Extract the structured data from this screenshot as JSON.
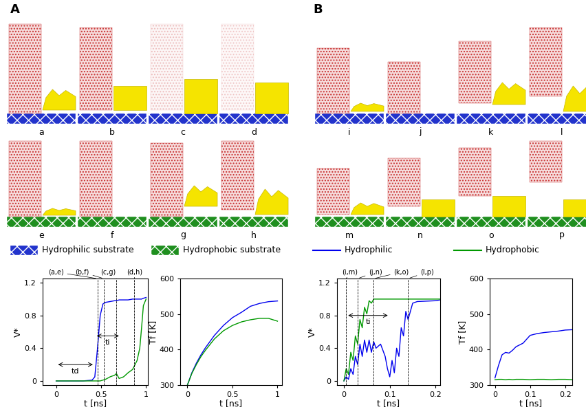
{
  "panels": [
    "A",
    "B"
  ],
  "snapshots": {
    "A": [
      "a",
      "b",
      "c",
      "d",
      "e",
      "f",
      "g",
      "h"
    ],
    "B": [
      "i",
      "j",
      "k",
      "l",
      "m",
      "n",
      "o",
      "p"
    ]
  },
  "legend_A": [
    {
      "name": "Hydrophilic substrate",
      "color": "#2233cc"
    },
    {
      "name": "Hydrophobic substrate",
      "color": "#1f8f1f"
    }
  ],
  "legend_B": [
    {
      "name": "Hydrophilic",
      "color": "#0000ee"
    },
    {
      "name": "Hydrophobic",
      "color": "#009900"
    }
  ],
  "chart_data": [
    {
      "type": "line",
      "x_label": "t [ns]",
      "y_label": "V*",
      "xlim": [
        -0.15,
        1.02
      ],
      "ylim": [
        -0.05,
        1.25
      ],
      "xticks": [
        0,
        0.5,
        1
      ],
      "yticks": [
        0,
        0.4,
        0.8,
        1.2
      ],
      "x": [
        0,
        0.1,
        0.2,
        0.3,
        0.4,
        0.43,
        0.46,
        0.49,
        0.52,
        0.55,
        0.6,
        0.65,
        0.67,
        0.7,
        0.75,
        0.8,
        0.85,
        0.9,
        0.93,
        0.95,
        0.97,
        1.0
      ],
      "series": [
        {
          "name": "Hydrophilic",
          "color": "#0000ee",
          "values": [
            0,
            0,
            0,
            0,
            0.01,
            0.05,
            0.4,
            0.8,
            0.94,
            0.96,
            0.97,
            0.98,
            0.98,
            0.99,
            0.99,
            0.99,
            1.0,
            1.0,
            1.0,
            1.0,
            1.01,
            1.02
          ]
        },
        {
          "name": "Hydrophobic",
          "color": "#009900",
          "values": [
            0,
            0,
            0,
            0,
            0,
            0,
            0,
            0,
            0.01,
            0.02,
            0.05,
            0.07,
            0.09,
            0.03,
            0.05,
            0.1,
            0.14,
            0.25,
            0.4,
            0.65,
            0.92,
            1.0
          ]
        }
      ],
      "annotations": [
        {
          "x": 0.46,
          "label": "(a,e)"
        },
        {
          "x": 0.53,
          "label": "(b,f)"
        },
        {
          "x": 0.67,
          "label": "(c,g)"
        },
        {
          "x": 0.87,
          "label": "(d,h)"
        }
      ],
      "intervals": [
        {
          "label": "td",
          "from": 0,
          "to": 0.43,
          "y": 0.2
        },
        {
          "label": "ti",
          "from": 0.43,
          "to": 0.72,
          "y": 0.55
        }
      ]
    },
    {
      "type": "line",
      "x_label": "t [ns]",
      "y_label": "Tf [K]",
      "xlim": [
        -0.08,
        1.05
      ],
      "ylim": [
        300,
        600
      ],
      "xticks": [
        0,
        0.5,
        1
      ],
      "yticks": [
        300,
        400,
        500,
        600
      ],
      "x": [
        0,
        0.05,
        0.1,
        0.15,
        0.2,
        0.3,
        0.4,
        0.5,
        0.6,
        0.7,
        0.8,
        0.9,
        1.0
      ],
      "series": [
        {
          "name": "Hydrophilic",
          "color": "#0000ee",
          "values": [
            300,
            335,
            362,
            385,
            405,
            440,
            468,
            490,
            505,
            522,
            530,
            535,
            537
          ]
        },
        {
          "name": "Hydrophobic",
          "color": "#009900",
          "values": [
            300,
            333,
            358,
            380,
            398,
            430,
            453,
            468,
            478,
            484,
            488,
            488,
            480
          ]
        }
      ],
      "annotations": [],
      "intervals": []
    },
    {
      "type": "line",
      "x_label": "t [ns]",
      "y_label": "V*",
      "xlim": [
        -0.015,
        0.21
      ],
      "ylim": [
        -0.05,
        1.25
      ],
      "xticks": [
        0,
        0.1,
        0.2
      ],
      "yticks": [
        0,
        0.4,
        0.8,
        1.2
      ],
      "x": [
        0,
        0.005,
        0.01,
        0.015,
        0.02,
        0.025,
        0.03,
        0.035,
        0.04,
        0.045,
        0.05,
        0.055,
        0.06,
        0.065,
        0.07,
        0.08,
        0.09,
        0.095,
        0.1,
        0.105,
        0.11,
        0.115,
        0.12,
        0.125,
        0.13,
        0.135,
        0.14,
        0.15,
        0.16,
        0.2,
        0.21
      ],
      "series": [
        {
          "name": "Hydrophilic",
          "color": "#0000ee",
          "values": [
            0,
            0.05,
            0.02,
            0.15,
            0.08,
            0.3,
            0.2,
            0.45,
            0.3,
            0.5,
            0.35,
            0.5,
            0.35,
            0.48,
            0.4,
            0.45,
            0.3,
            0.15,
            0.05,
            0.25,
            0.1,
            0.4,
            0.3,
            0.65,
            0.55,
            0.85,
            0.75,
            0.95,
            0.97,
            0.98,
            0.99
          ]
        },
        {
          "name": "Hydrophobic",
          "color": "#009900",
          "values": [
            0,
            0.15,
            0.08,
            0.35,
            0.25,
            0.55,
            0.45,
            0.75,
            0.65,
            0.9,
            0.82,
            0.98,
            0.95,
            1.0,
            1.0,
            1.0,
            1.0,
            1.0,
            1.0,
            1.0,
            1.0,
            1.0,
            1.0,
            1.0,
            1.0,
            1.0,
            1.0,
            1.0,
            1.0,
            1.0,
            1.0
          ]
        }
      ],
      "annotations": [
        {
          "x": 0.005,
          "label": "(i,m)"
        },
        {
          "x": 0.03,
          "label": "(j,n)"
        },
        {
          "x": 0.065,
          "label": "(k,o)"
        },
        {
          "x": 0.14,
          "label": "(l,p)"
        }
      ],
      "intervals": [
        {
          "label": "ti",
          "from": 0.005,
          "to": 0.1,
          "y": 0.8
        }
      ]
    },
    {
      "type": "line",
      "x_label": "t [ns]",
      "y_label": "Tf [K]",
      "xlim": [
        -0.015,
        0.22
      ],
      "ylim": [
        300,
        600
      ],
      "xticks": [
        0,
        0.1,
        0.2
      ],
      "yticks": [
        300,
        400,
        500,
        600
      ],
      "x": [
        0,
        0.01,
        0.02,
        0.03,
        0.04,
        0.05,
        0.06,
        0.08,
        0.1,
        0.12,
        0.14,
        0.16,
        0.18,
        0.2,
        0.22
      ],
      "series": [
        {
          "name": "Hydrophilic",
          "color": "#0000ee",
          "values": [
            320,
            355,
            385,
            392,
            390,
            398,
            408,
            418,
            440,
            445,
            448,
            450,
            452,
            455,
            456
          ]
        },
        {
          "name": "Hydrophobic",
          "color": "#009900",
          "values": [
            315,
            316,
            316,
            315,
            316,
            315,
            316,
            316,
            315,
            316,
            316,
            315,
            316,
            316,
            315
          ]
        }
      ],
      "annotations": [],
      "intervals": []
    }
  ]
}
